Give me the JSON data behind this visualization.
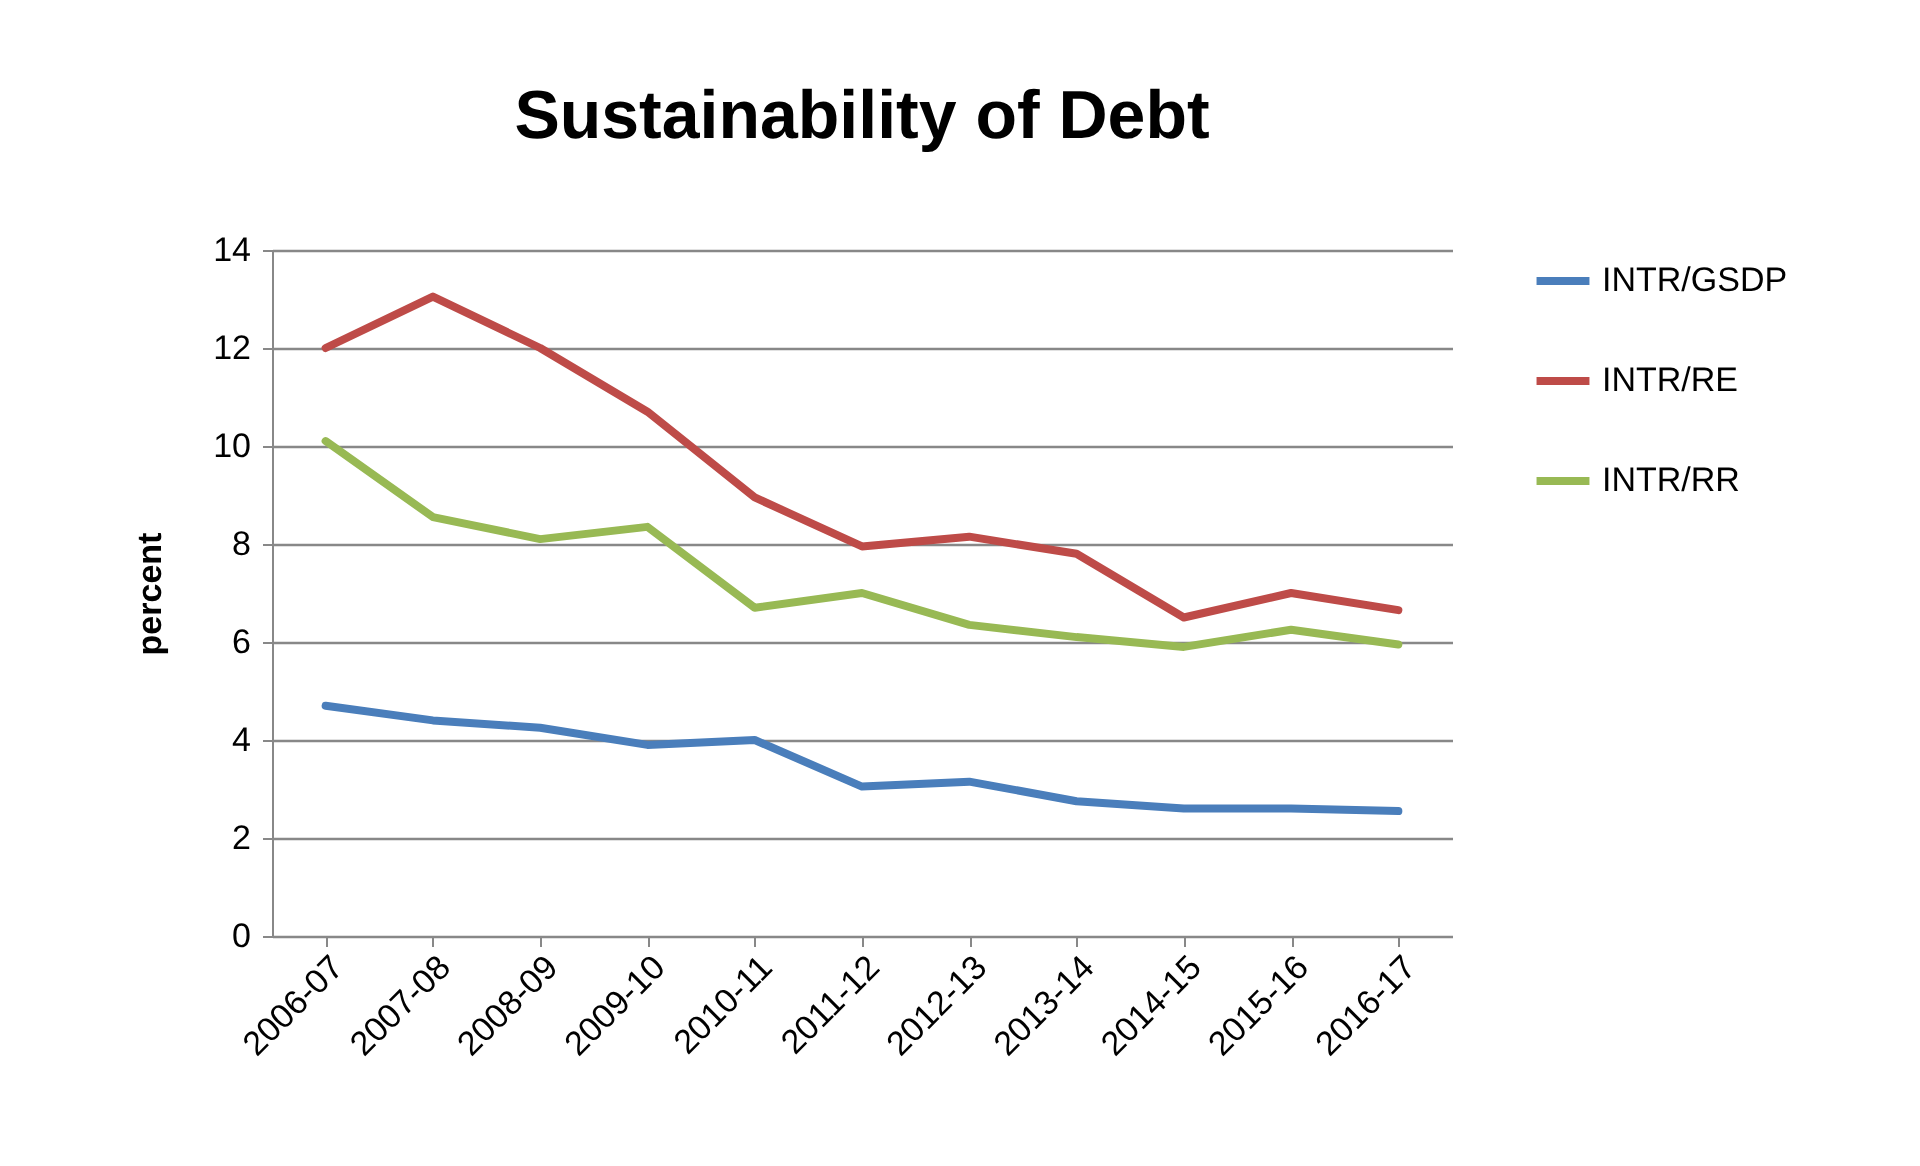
{
  "chart_data": {
    "type": "line",
    "title": "Sustainability of Debt",
    "ylabel": "percent",
    "categories": [
      "2006-07",
      "2007-08",
      "2008-09",
      "2009-10",
      "2010-11",
      "2011-12",
      "2012-13",
      "2013-14",
      "2014-15",
      "2015-16",
      "2016-17"
    ],
    "series": [
      {
        "name": "INTR/GSDP",
        "color": "#4a7ebb",
        "values": [
          4.7,
          4.4,
          4.25,
          3.9,
          4.0,
          3.05,
          3.15,
          2.75,
          2.6,
          2.6,
          2.55
        ]
      },
      {
        "name": "INTR/RE",
        "color": "#be4b48",
        "values": [
          12.0,
          13.05,
          12.0,
          10.7,
          8.95,
          7.95,
          8.15,
          7.8,
          6.5,
          7.0,
          6.65
        ]
      },
      {
        "name": "INTR/RR",
        "color": "#98b954",
        "values": [
          10.1,
          8.55,
          8.1,
          8.35,
          6.7,
          7.0,
          6.35,
          6.1,
          5.9,
          6.25,
          5.95
        ]
      }
    ],
    "ylim": [
      0,
      14
    ],
    "yticks": [
      0,
      2,
      4,
      6,
      8,
      10,
      12,
      14
    ],
    "grid": "y",
    "legend": "right",
    "marker": "none",
    "line_style": "solid"
  }
}
